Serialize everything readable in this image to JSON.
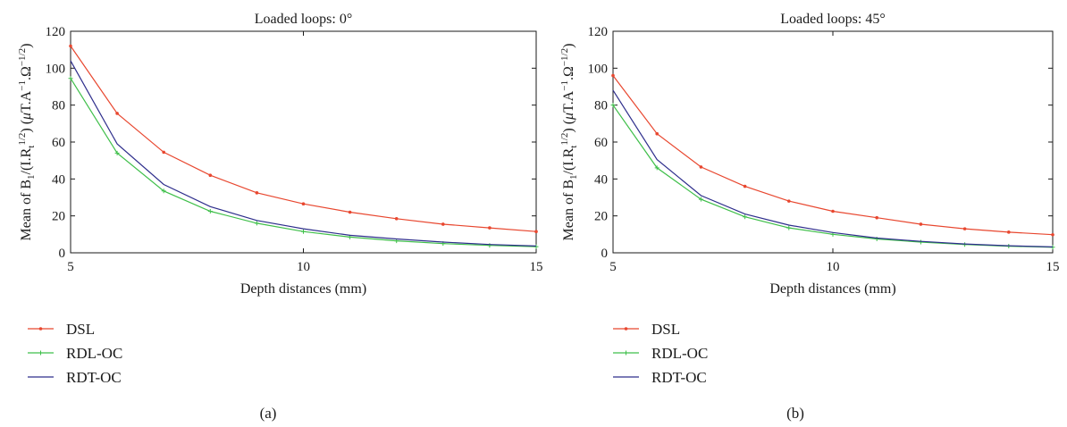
{
  "chart_data": [
    {
      "type": "line",
      "title": "Loaded loops: 0°",
      "xlabel": "Depth distances (mm)",
      "ylabel": "Mean of B₁/(I.Rₜ¹ᐟ²) (μT.A⁻¹.Ω⁻¹ᐟ²)",
      "xlim": [
        5,
        15
      ],
      "ylim": [
        0,
        120
      ],
      "x_ticks": [
        5,
        10,
        15
      ],
      "y_ticks": [
        0,
        20,
        40,
        60,
        80,
        100,
        120
      ],
      "grid": false,
      "legend_position": "below",
      "caption": "(a)",
      "x": [
        5,
        6,
        7,
        8,
        9,
        10,
        11,
        12,
        13,
        14,
        15
      ],
      "series": [
        {
          "name": "DSL",
          "color": "#e8472f",
          "marker": "dot",
          "values": [
            112,
            75.5,
            54.5,
            42,
            32.5,
            26.5,
            22,
            18.5,
            15.5,
            13.5,
            11.5
          ]
        },
        {
          "name": "RDL-OC",
          "color": "#3fbf4a",
          "marker": "plus",
          "values": [
            94.5,
            54,
            33.5,
            22.5,
            16,
            11.5,
            8.5,
            6.5,
            5,
            4,
            3.3
          ]
        },
        {
          "name": "RDT-OC",
          "color": "#2e2e8c",
          "marker": "none",
          "values": [
            104,
            59,
            37,
            25,
            17.5,
            13,
            9.5,
            7.5,
            5.8,
            4.5,
            3.7
          ]
        }
      ]
    },
    {
      "type": "line",
      "title": "Loaded loops: 45°",
      "xlabel": "Depth distances (mm)",
      "ylabel": "Mean of B₁/(I.Rₜ¹ᐟ²) (μT.A⁻¹.Ω⁻¹ᐟ²)",
      "xlim": [
        5,
        15
      ],
      "ylim": [
        0,
        120
      ],
      "x_ticks": [
        5,
        10,
        15
      ],
      "y_ticks": [
        0,
        20,
        40,
        60,
        80,
        100,
        120
      ],
      "grid": false,
      "legend_position": "below",
      "caption": "(b)",
      "x": [
        5,
        6,
        7,
        8,
        9,
        10,
        11,
        12,
        13,
        14,
        15
      ],
      "series": [
        {
          "name": "DSL",
          "color": "#e8472f",
          "marker": "dot",
          "values": [
            96,
            64.5,
            46.5,
            36,
            28,
            22.5,
            19,
            15.5,
            13,
            11.2,
            9.8
          ]
        },
        {
          "name": "RDL-OC",
          "color": "#3fbf4a",
          "marker": "plus",
          "values": [
            80,
            46,
            29,
            19.5,
            13.5,
            10,
            7.5,
            5.8,
            4.5,
            3.6,
            3
          ]
        },
        {
          "name": "RDT-OC",
          "color": "#2e2e8c",
          "marker": "none",
          "values": [
            88,
            50.5,
            31,
            21,
            15,
            11,
            8,
            6.2,
            4.8,
            3.8,
            3.2
          ]
        }
      ]
    }
  ]
}
